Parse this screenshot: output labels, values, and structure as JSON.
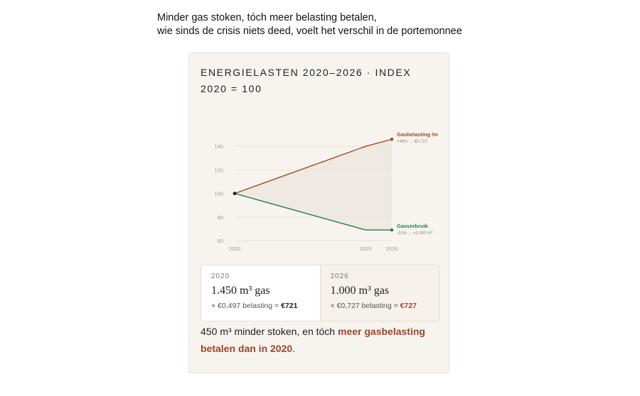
{
  "headline": {
    "line1": "Minder gas stoken, tóch meer belasting betalen,",
    "line2": "wie sinds de crisis niets deed, voelt het verschil in de portemonnee"
  },
  "card": {
    "title_line1": "ENERGIELASTEN 2020–2026 · INDEX",
    "title_line2": "2020 = 100"
  },
  "chart_data": {
    "type": "line",
    "x": [
      2020,
      2025,
      2026
    ],
    "y_ticks": [
      60,
      80,
      100,
      120,
      140
    ],
    "x_ticks": [
      2020,
      2025,
      2026
    ],
    "ylim": [
      60,
      146
    ],
    "series": [
      {
        "name": "Gasbelasting /m",
        "values": [
          100,
          140,
          146
        ],
        "annotation": "+46% → €0,727",
        "color": "#a0442c"
      },
      {
        "name": "Gasverbruik",
        "values": [
          100,
          69,
          69
        ],
        "annotation": "-31% → ±1.000 m³",
        "color": "#2e7a55"
      }
    ],
    "grid": true,
    "shaded_between_series": true
  },
  "panels": [
    {
      "year": "2020",
      "amount": "1.450 m³ gas",
      "calc_prefix": "× €0,497 belasting = ",
      "calc_result": "€721",
      "result_color": "dark"
    },
    {
      "year": "2026",
      "amount": "1.000 m³ gas",
      "calc_prefix": "× €0,727 belasting = ",
      "calc_result": "€727",
      "result_color": "#a0442c"
    }
  ],
  "conclusion": {
    "prefix": "450 m³ minder stoken, en tóch ",
    "emphasis": "meer gasbelasting betalen dan in 2020",
    "suffix": "."
  },
  "colors": {
    "card_bg": "#f7f4ef",
    "tax_line": "#a0442c",
    "usage_line": "#2e7a55",
    "accent_text": "#a0442c"
  }
}
